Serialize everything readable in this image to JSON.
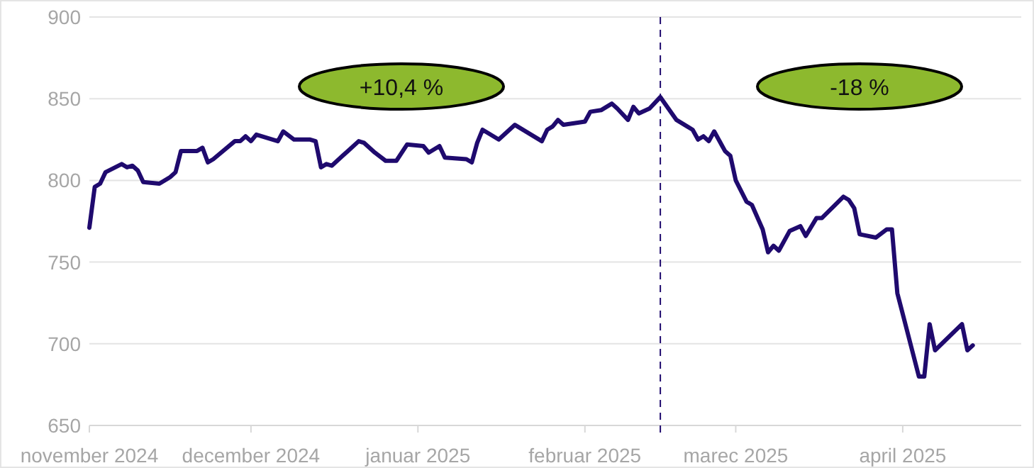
{
  "chart_data": {
    "type": "line",
    "x": [
      "2024-11-01",
      "2024-11-02",
      "2024-11-03",
      "2024-11-04",
      "2024-11-07",
      "2024-11-08",
      "2024-11-09",
      "2024-11-10",
      "2024-11-11",
      "2024-11-14",
      "2024-11-16",
      "2024-11-17",
      "2024-11-18",
      "2024-11-19",
      "2024-11-21",
      "2024-11-22",
      "2024-11-23",
      "2024-11-24",
      "2024-11-28",
      "2024-11-29",
      "2024-11-30",
      "2024-12-01",
      "2024-12-02",
      "2024-12-06",
      "2024-12-07",
      "2024-12-09",
      "2024-12-12",
      "2024-12-13",
      "2024-12-14",
      "2024-12-15",
      "2024-12-16",
      "2024-12-18",
      "2024-12-19",
      "2024-12-21",
      "2024-12-22",
      "2024-12-24",
      "2024-12-26",
      "2024-12-28",
      "2024-12-30",
      "2025-01-02",
      "2025-01-03",
      "2025-01-05",
      "2025-01-06",
      "2025-01-10",
      "2025-01-11",
      "2025-01-12",
      "2025-01-13",
      "2025-01-16",
      "2025-01-19",
      "2025-01-24",
      "2025-01-25",
      "2025-01-26",
      "2025-01-27",
      "2025-01-28",
      "2025-02-01",
      "2025-02-02",
      "2025-02-04",
      "2025-02-06",
      "2025-02-07",
      "2025-02-09",
      "2025-02-10",
      "2025-02-11",
      "2025-02-13",
      "2025-02-15",
      "2025-02-18",
      "2025-02-20",
      "2025-02-21",
      "2025-02-22",
      "2025-02-23",
      "2025-02-24",
      "2025-02-25",
      "2025-02-27",
      "2025-02-28",
      "2025-03-01",
      "2025-03-03",
      "2025-03-04",
      "2025-03-06",
      "2025-03-07",
      "2025-03-08",
      "2025-03-09",
      "2025-03-11",
      "2025-03-13",
      "2025-03-14",
      "2025-03-16",
      "2025-03-17",
      "2025-03-21",
      "2025-03-22",
      "2025-03-23",
      "2025-03-24",
      "2025-03-27",
      "2025-03-29",
      "2025-03-30",
      "2025-03-31",
      "2025-04-04",
      "2025-04-05",
      "2025-04-06",
      "2025-04-07",
      "2025-04-12",
      "2025-04-13",
      "2025-04-14"
    ],
    "series": [
      {
        "color": "#1f0a6e",
        "values": [
          771,
          796,
          798,
          805,
          810,
          808,
          809,
          806,
          799,
          798,
          802,
          805,
          818,
          818,
          818,
          820,
          811,
          813,
          824,
          824,
          827,
          824,
          828,
          824,
          830,
          825,
          825,
          824,
          808,
          810,
          809,
          815,
          818,
          824,
          823,
          817,
          812,
          812,
          822,
          821,
          817,
          821,
          814,
          813,
          811,
          823,
          831,
          825,
          834,
          824,
          831,
          833,
          837,
          834,
          836,
          842,
          843,
          847,
          844,
          837,
          845,
          841,
          844,
          851,
          837,
          833,
          831,
          825,
          827,
          824,
          830,
          818,
          815,
          800,
          787,
          785,
          770,
          756,
          760,
          757,
          769,
          772,
          766,
          777,
          777,
          790,
          788,
          783,
          767,
          765,
          770,
          770,
          731,
          680,
          680,
          712,
          696,
          712,
          696,
          699
        ]
      }
    ],
    "xlim": [
      "2024-11-01",
      "2025-04-23"
    ],
    "xticks": [
      {
        "value": "2024-11-01",
        "label": "november 2024"
      },
      {
        "value": "2024-12-01",
        "label": "december 2024"
      },
      {
        "value": "2025-01-01",
        "label": "januar 2025"
      },
      {
        "value": "2025-02-01",
        "label": "februar 2025"
      },
      {
        "value": "2025-03-01",
        "label": "marec 2025"
      },
      {
        "value": "2025-04-01",
        "label": "april 2025"
      }
    ],
    "ylim": [
      650,
      900
    ],
    "yticks": [
      650,
      700,
      750,
      800,
      850,
      900
    ],
    "grid": "y",
    "marker": "none",
    "line_style": "solid",
    "ref_lines": [
      {
        "axis": "x",
        "value": "2025-02-15",
        "color": "#1f0a6e",
        "line_style": "dashed"
      }
    ],
    "annotations": [
      "+10,4 %",
      "-18 %"
    ]
  }
}
